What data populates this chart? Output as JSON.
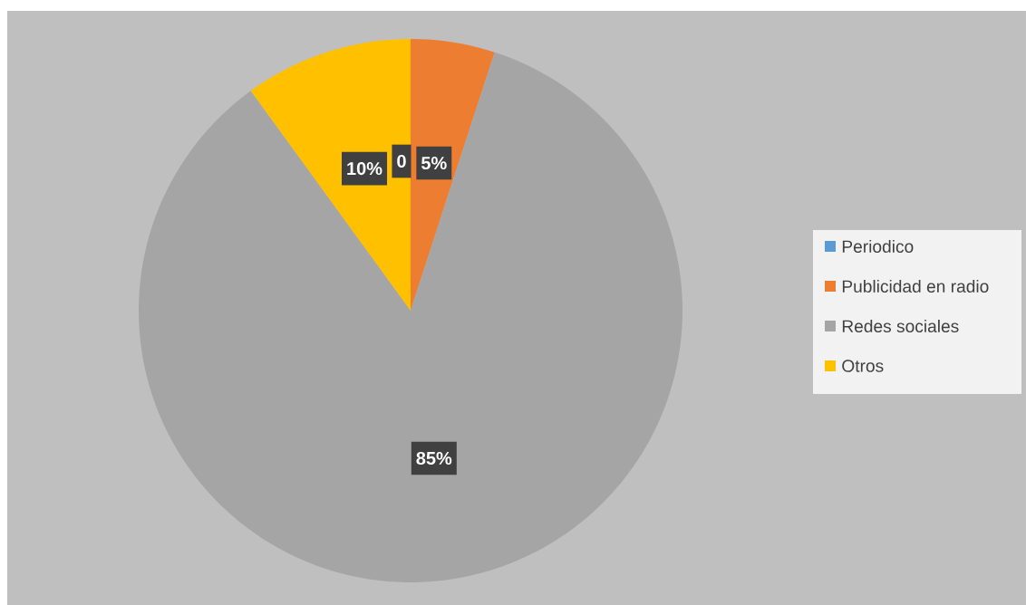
{
  "chart_data": {
    "type": "pie",
    "categories": [
      "Periodico",
      "Publicidad en radio",
      "Redes sociales",
      "Otros"
    ],
    "values": [
      0,
      5,
      85,
      10
    ],
    "colors": [
      "#5b9bd5",
      "#ed7d31",
      "#a5a5a5",
      "#ffc000"
    ],
    "value_labels": [
      "0",
      "5%",
      "85%",
      "10%"
    ],
    "legend": "right"
  }
}
